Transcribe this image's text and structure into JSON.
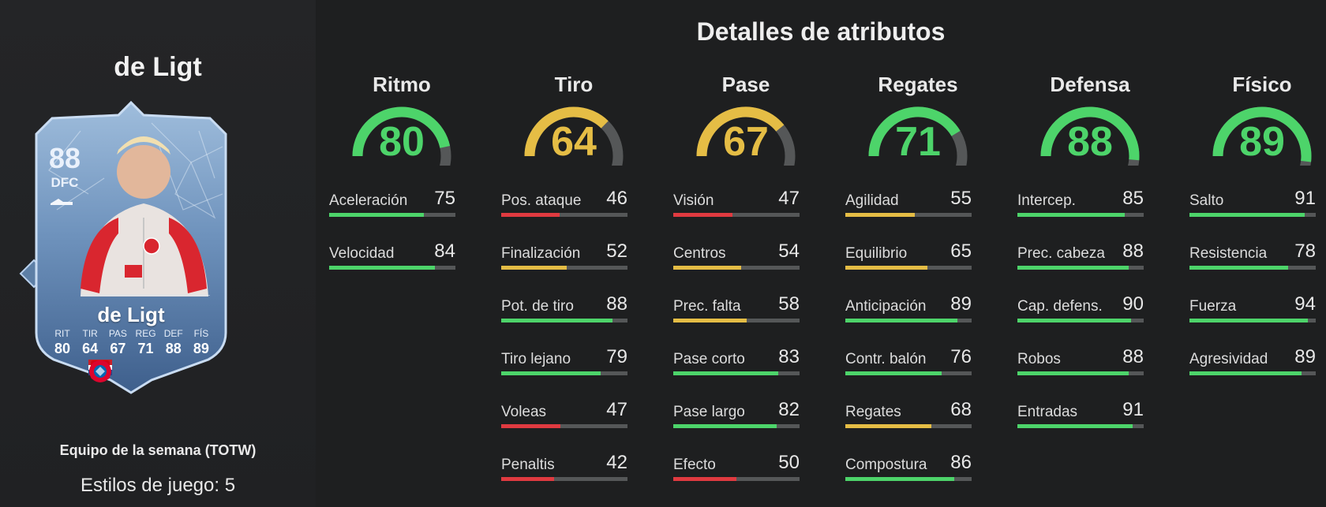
{
  "player": {
    "name": "de Ligt",
    "card_name": "de Ligt",
    "rating": "88",
    "position": "DFC",
    "card_stats": [
      {
        "label": "RIT",
        "value": "80"
      },
      {
        "label": "TIR",
        "value": "64"
      },
      {
        "label": "PAS",
        "value": "67"
      },
      {
        "label": "REG",
        "value": "71"
      },
      {
        "label": "DEF",
        "value": "88"
      },
      {
        "label": "FÍS",
        "value": "89"
      }
    ],
    "icons": [
      "boot-icon",
      "netherlands-flag-icon",
      "bundesliga-logo-icon",
      "fc-bayern-logo-icon",
      "playstyle-diamond-icon"
    ]
  },
  "footer": {
    "program": "Equipo de la semana (TOTW)",
    "playstyles": "Estilos de juego: 5"
  },
  "details": {
    "title": "Detalles de atributos",
    "colors": {
      "green": "#4dd46a",
      "yellow": "#e5bd45",
      "red": "#e03a40",
      "track": "#555758"
    },
    "categories": [
      {
        "name": "Ritmo",
        "value": 80,
        "color": "green",
        "stats": [
          {
            "name": "Aceleración",
            "value": 75,
            "color": "green"
          },
          {
            "name": "Velocidad",
            "value": 84,
            "color": "green"
          }
        ]
      },
      {
        "name": "Tiro",
        "value": 64,
        "color": "yellow",
        "stats": [
          {
            "name": "Pos. ataque",
            "value": 46,
            "color": "red"
          },
          {
            "name": "Finalización",
            "value": 52,
            "color": "yellow"
          },
          {
            "name": "Pot. de tiro",
            "value": 88,
            "color": "green"
          },
          {
            "name": "Tiro lejano",
            "value": 79,
            "color": "green"
          },
          {
            "name": "Voleas",
            "value": 47,
            "color": "red"
          },
          {
            "name": "Penaltis",
            "value": 42,
            "color": "red"
          }
        ]
      },
      {
        "name": "Pase",
        "value": 67,
        "color": "yellow",
        "stats": [
          {
            "name": "Visión",
            "value": 47,
            "color": "red"
          },
          {
            "name": "Centros",
            "value": 54,
            "color": "yellow"
          },
          {
            "name": "Prec. falta",
            "value": 58,
            "color": "yellow"
          },
          {
            "name": "Pase corto",
            "value": 83,
            "color": "green"
          },
          {
            "name": "Pase largo",
            "value": 82,
            "color": "green"
          },
          {
            "name": "Efecto",
            "value": 50,
            "color": "red"
          }
        ]
      },
      {
        "name": "Regates",
        "value": 71,
        "color": "green",
        "stats": [
          {
            "name": "Agilidad",
            "value": 55,
            "color": "yellow"
          },
          {
            "name": "Equilibrio",
            "value": 65,
            "color": "yellow"
          },
          {
            "name": "Anticipación",
            "value": 89,
            "color": "green"
          },
          {
            "name": "Contr. balón",
            "value": 76,
            "color": "green"
          },
          {
            "name": "Regates",
            "value": 68,
            "color": "yellow"
          },
          {
            "name": "Compostura",
            "value": 86,
            "color": "green"
          }
        ]
      },
      {
        "name": "Defensa",
        "value": 88,
        "color": "green",
        "stats": [
          {
            "name": "Intercep.",
            "value": 85,
            "color": "green"
          },
          {
            "name": "Prec. cabeza",
            "value": 88,
            "color": "green"
          },
          {
            "name": "Cap. defens.",
            "value": 90,
            "color": "green"
          },
          {
            "name": "Robos",
            "value": 88,
            "color": "green"
          },
          {
            "name": "Entradas",
            "value": 91,
            "color": "green"
          }
        ]
      },
      {
        "name": "Físico",
        "value": 89,
        "color": "green",
        "stats": [
          {
            "name": "Salto",
            "value": 91,
            "color": "green"
          },
          {
            "name": "Resistencia",
            "value": 78,
            "color": "green"
          },
          {
            "name": "Fuerza",
            "value": 94,
            "color": "green"
          },
          {
            "name": "Agresividad",
            "value": 89,
            "color": "green"
          }
        ]
      }
    ]
  }
}
